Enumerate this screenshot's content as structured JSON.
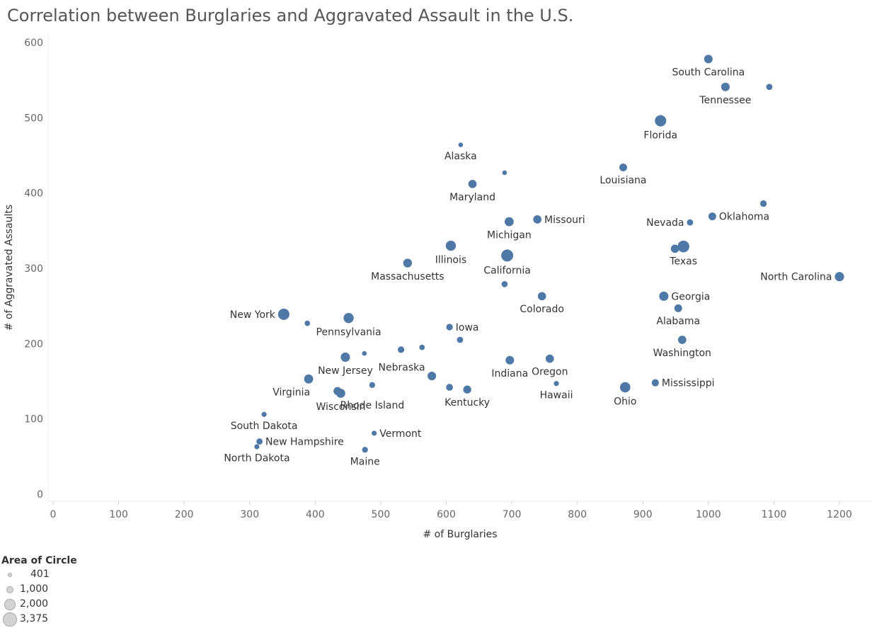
{
  "chart_data": {
    "type": "scatter",
    "title": "Correlation between Burglaries and Aggravated Assault in the U.S.",
    "xlabel": "# of Burglaries",
    "ylabel": "# of Aggravated Assaults",
    "xlim": [
      0,
      1250
    ],
    "ylim": [
      -10,
      610
    ],
    "xticks": [
      "0",
      "100",
      "200",
      "300",
      "400",
      "500",
      "600",
      "700",
      "800",
      "900",
      "1000",
      "1100",
      "1200"
    ],
    "yticks": [
      "0",
      "100",
      "200",
      "300",
      "400",
      "500",
      "600"
    ],
    "marker_color": "#4e79a7",
    "grid": false,
    "points": [
      {
        "name": "South Carolina",
        "x": 1000,
        "y": 578,
        "size": 1700,
        "label_pos": "below"
      },
      {
        "name": "Tennessee",
        "x": 1026,
        "y": 541,
        "size": 1700,
        "label_pos": "below"
      },
      {
        "name": "",
        "x": 1093,
        "y": 541,
        "size": 900,
        "label_pos": "none"
      },
      {
        "name": "Florida",
        "x": 927,
        "y": 496,
        "size": 3000,
        "label_pos": "below"
      },
      {
        "name": "Alaska",
        "x": 622,
        "y": 464,
        "size": 500,
        "label_pos": "below"
      },
      {
        "name": "Louisiana",
        "x": 870,
        "y": 434,
        "size": 1400,
        "label_pos": "below"
      },
      {
        "name": "",
        "x": 689,
        "y": 427,
        "size": 500,
        "label_pos": "none"
      },
      {
        "name": "Maryland",
        "x": 640,
        "y": 412,
        "size": 1600,
        "label_pos": "below"
      },
      {
        "name": "",
        "x": 1084,
        "y": 386,
        "size": 1000,
        "label_pos": "none"
      },
      {
        "name": "Oklahoma",
        "x": 1006,
        "y": 369,
        "size": 1400,
        "label_pos": "right"
      },
      {
        "name": "Missouri",
        "x": 739,
        "y": 365,
        "size": 1600,
        "label_pos": "right"
      },
      {
        "name": "Michigan",
        "x": 696,
        "y": 362,
        "size": 1900,
        "label_pos": "below"
      },
      {
        "name": "Nevada",
        "x": 972,
        "y": 361,
        "size": 900,
        "label_pos": "left"
      },
      {
        "name": "Illinois",
        "x": 607,
        "y": 330,
        "size": 2400,
        "label_pos": "below"
      },
      {
        "name": "Texas",
        "x": 962,
        "y": 329,
        "size": 3200,
        "label_pos": "below"
      },
      {
        "name": "",
        "x": 949,
        "y": 326,
        "size": 1600,
        "label_pos": "none"
      },
      {
        "name": "California",
        "x": 693,
        "y": 317,
        "size": 3375,
        "label_pos": "below"
      },
      {
        "name": "Massachusetts",
        "x": 541,
        "y": 307,
        "size": 1800,
        "label_pos": "below"
      },
      {
        "name": "North Carolina",
        "x": 1200,
        "y": 289,
        "size": 2000,
        "label_pos": "left"
      },
      {
        "name": "",
        "x": 689,
        "y": 279,
        "size": 900,
        "label_pos": "none"
      },
      {
        "name": "Georgia",
        "x": 932,
        "y": 263,
        "size": 2000,
        "label_pos": "right"
      },
      {
        "name": "Colorado",
        "x": 746,
        "y": 263,
        "size": 1600,
        "label_pos": "below"
      },
      {
        "name": "Alabama",
        "x": 954,
        "y": 247,
        "size": 1400,
        "label_pos": "below"
      },
      {
        "name": "New York",
        "x": 352,
        "y": 239,
        "size": 3000,
        "label_pos": "left"
      },
      {
        "name": "Pennsylvania",
        "x": 451,
        "y": 234,
        "size": 2400,
        "label_pos": "below"
      },
      {
        "name": "",
        "x": 388,
        "y": 227,
        "size": 700,
        "label_pos": "none"
      },
      {
        "name": "Iowa",
        "x": 605,
        "y": 222,
        "size": 1000,
        "label_pos": "right"
      },
      {
        "name": "",
        "x": 621,
        "y": 205,
        "size": 900,
        "label_pos": "none"
      },
      {
        "name": "Washington",
        "x": 960,
        "y": 205,
        "size": 1600,
        "label_pos": "below"
      },
      {
        "name": "",
        "x": 563,
        "y": 195,
        "size": 700,
        "label_pos": "none"
      },
      {
        "name": "",
        "x": 531,
        "y": 192,
        "size": 1000,
        "label_pos": "none"
      },
      {
        "name": "",
        "x": 475,
        "y": 187,
        "size": 500,
        "label_pos": "none"
      },
      {
        "name": "New Jersey",
        "x": 446,
        "y": 182,
        "size": 2000,
        "label_pos": "below"
      },
      {
        "name": "Nebraska",
        "x": 532,
        "y": 180,
        "size": 500,
        "label_pos": "hidden"
      },
      {
        "name": "Oregon",
        "x": 758,
        "y": 180,
        "size": 1600,
        "label_pos": "below"
      },
      {
        "name": "Indiana",
        "x": 697,
        "y": 178,
        "size": 1700,
        "label_pos": "below"
      },
      {
        "name": "",
        "x": 578,
        "y": 157,
        "size": 1700,
        "label_pos": "none"
      },
      {
        "name": "Virginia",
        "x": 390,
        "y": 153,
        "size": 1900,
        "label_pos": "below-left"
      },
      {
        "name": "Mississippi",
        "x": 919,
        "y": 148,
        "size": 1200,
        "label_pos": "right"
      },
      {
        "name": "Hawaii",
        "x": 768,
        "y": 147,
        "size": 600,
        "label_pos": "below"
      },
      {
        "name": "",
        "x": 487,
        "y": 145,
        "size": 800,
        "label_pos": "none"
      },
      {
        "name": "Ohio",
        "x": 873,
        "y": 142,
        "size": 2500,
        "label_pos": "below"
      },
      {
        "name": "",
        "x": 605,
        "y": 142,
        "size": 1100,
        "label_pos": "none"
      },
      {
        "name": "Kentucky",
        "x": 632,
        "y": 139,
        "size": 1500,
        "label_pos": "below"
      },
      {
        "name": "Rhode Island",
        "x": 487,
        "y": 130,
        "size": 500,
        "label_pos": "hidden"
      },
      {
        "name": "",
        "x": 434,
        "y": 137,
        "size": 1500,
        "label_pos": "none"
      },
      {
        "name": "Wisconsin",
        "x": 439,
        "y": 134,
        "size": 1900,
        "label_pos": "below"
      },
      {
        "name": "South Dakota",
        "x": 322,
        "y": 106,
        "size": 600,
        "label_pos": "below"
      },
      {
        "name": "Vermont",
        "x": 490,
        "y": 81,
        "size": 600,
        "label_pos": "right"
      },
      {
        "name": "New Hampshire",
        "x": 315,
        "y": 70,
        "size": 900,
        "label_pos": "right"
      },
      {
        "name": "North Dakota",
        "x": 311,
        "y": 63,
        "size": 600,
        "label_pos": "below"
      },
      {
        "name": "Maine",
        "x": 476,
        "y": 59,
        "size": 800,
        "label_pos": "below"
      }
    ],
    "size_legend": {
      "title": "Area of Circle",
      "entries": [
        {
          "label": "401",
          "value": 401
        },
        {
          "label": "1,000",
          "value": 1000
        },
        {
          "label": "2,000",
          "value": 2000
        },
        {
          "label": "3,375",
          "value": 3375
        }
      ]
    }
  }
}
